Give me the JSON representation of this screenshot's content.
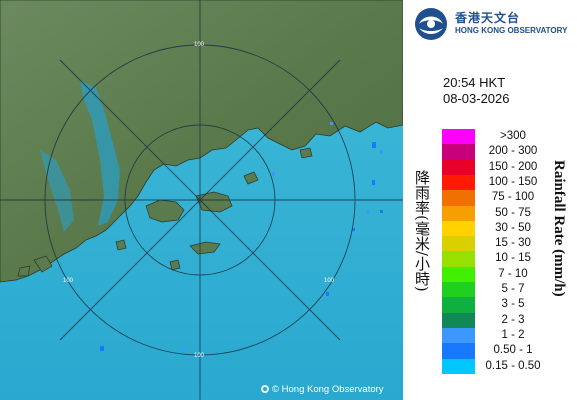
{
  "logo": {
    "name_cn": "香港天文台",
    "name_en": "HONG KONG OBSERVATORY"
  },
  "timestamp": {
    "time": "20:54 HKT",
    "date": "08-03-2026"
  },
  "legend": {
    "title_cn": "降雨率(毫米/小時)",
    "title_en": "Rainfall Rate (mm/h)",
    "items": [
      {
        "label": ">300",
        "color": "#ff00ff"
      },
      {
        "label": "200 - 300",
        "color": "#c8007a"
      },
      {
        "label": "150 - 200",
        "color": "#e8002a"
      },
      {
        "label": "100 - 150",
        "color": "#ff1a00"
      },
      {
        "label": "75 - 100",
        "color": "#f07000"
      },
      {
        "label": "50 - 75",
        "color": "#f5a000"
      },
      {
        "label": "30 - 50",
        "color": "#ffd200"
      },
      {
        "label": "15 - 30",
        "color": "#d8d000"
      },
      {
        "label": "10 - 15",
        "color": "#98e000"
      },
      {
        "label": "7 - 10",
        "color": "#40f000"
      },
      {
        "label": "5 - 7",
        "color": "#20d020"
      },
      {
        "label": "3 - 5",
        "color": "#10b040"
      },
      {
        "label": "2 - 3",
        "color": "#108858"
      },
      {
        "label": "1 - 2",
        "color": "#3c98ff"
      },
      {
        "label": "0.50 - 1",
        "color": "#1878ff"
      },
      {
        "label": "0.15 - 0.50",
        "color": "#00c8ff"
      }
    ]
  },
  "map": {
    "range_labels": [
      "100",
      "100",
      "100",
      "100"
    ],
    "copyright": "© Hong Kong Observatory",
    "sea_color": "#3ab8d8",
    "land_color": "#5b7a4d"
  }
}
